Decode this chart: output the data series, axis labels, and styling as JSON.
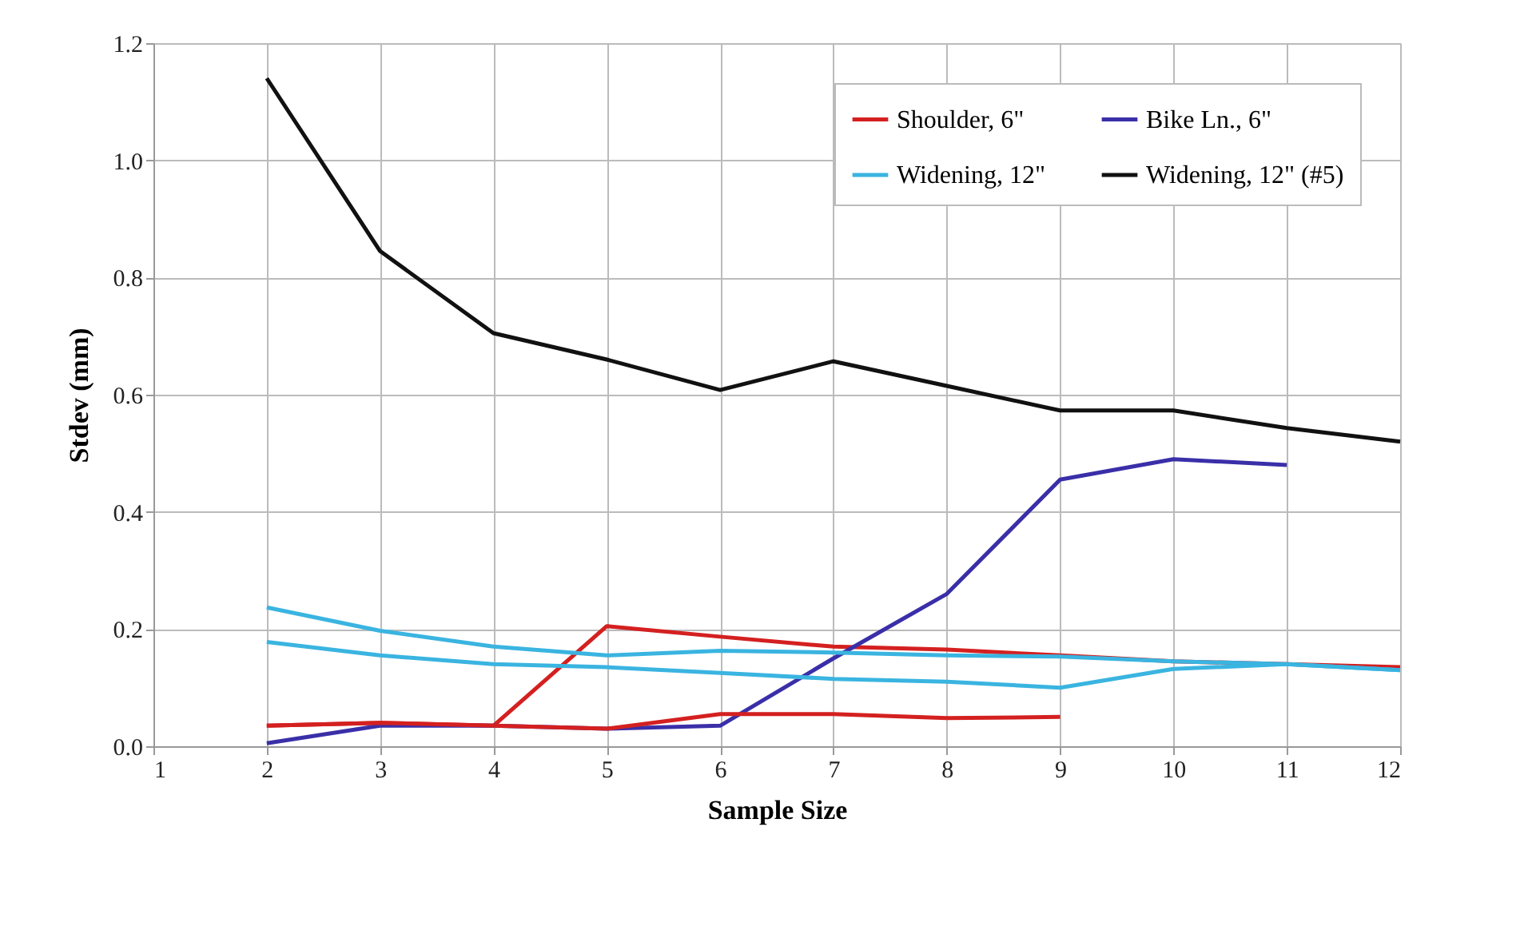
{
  "chart_data": {
    "type": "line",
    "xlabel": "Sample Size",
    "ylabel": "Stdev (mm)",
    "xlim": [
      1,
      12
    ],
    "xticks": [
      1,
      2,
      3,
      4,
      5,
      6,
      7,
      8,
      9,
      10,
      11,
      12
    ],
    "ylim": [
      0,
      1.2
    ],
    "yticks": [
      {
        "value": 0,
        "label": "0.0"
      },
      0.2,
      0.4,
      0.6,
      0.8,
      {
        "value": 1,
        "label": "1.0"
      },
      1.2
    ],
    "grid": true,
    "legend": "top right",
    "marker": "none",
    "line_style": "solid",
    "x": [
      2,
      3,
      4,
      5,
      6,
      7,
      8,
      9,
      10,
      11,
      12
    ],
    "series": [
      {
        "name": "Shoulder, 6\"",
        "color": "#d42020",
        "values": [
          0.035,
          0.04,
          0.035,
          0.205,
          0.187,
          0.17,
          0.165,
          0.155,
          0.145,
          0.14,
          0.135
        ]
      },
      {
        "name": "Bike Ln., 6\"",
        "color": "#3a2fa8",
        "values": [
          0.005,
          0.035,
          0.035,
          0.03,
          0.035,
          0.15,
          0.26,
          0.455,
          0.49,
          0.48,
          null
        ]
      },
      {
        "name": "Widening, 12\"",
        "color": "#3ab4e0",
        "values": [
          0.237,
          0.197,
          0.17,
          0.155,
          0.163,
          0.16,
          0.155,
          0.153,
          0.145,
          0.14,
          0.13
        ]
      },
      {
        "name": "Widening, 12\" (#5)",
        "color": "#111111",
        "values": [
          1.14,
          0.845,
          0.705,
          0.66,
          0.608,
          0.657,
          0.615,
          0.573,
          0.573,
          0.543,
          0.52
        ]
      },
      {
        "color": "#d42020",
        "values": [
          0.035,
          0.04,
          0.035,
          0.03,
          0.055,
          0.055,
          0.048,
          0.05,
          null,
          null,
          null
        ]
      },
      {
        "color": "#3ab4e0",
        "values": [
          0.178,
          0.155,
          0.14,
          0.135,
          0.125,
          0.115,
          0.11,
          0.1,
          0.132,
          0.14,
          0.13
        ]
      }
    ]
  }
}
